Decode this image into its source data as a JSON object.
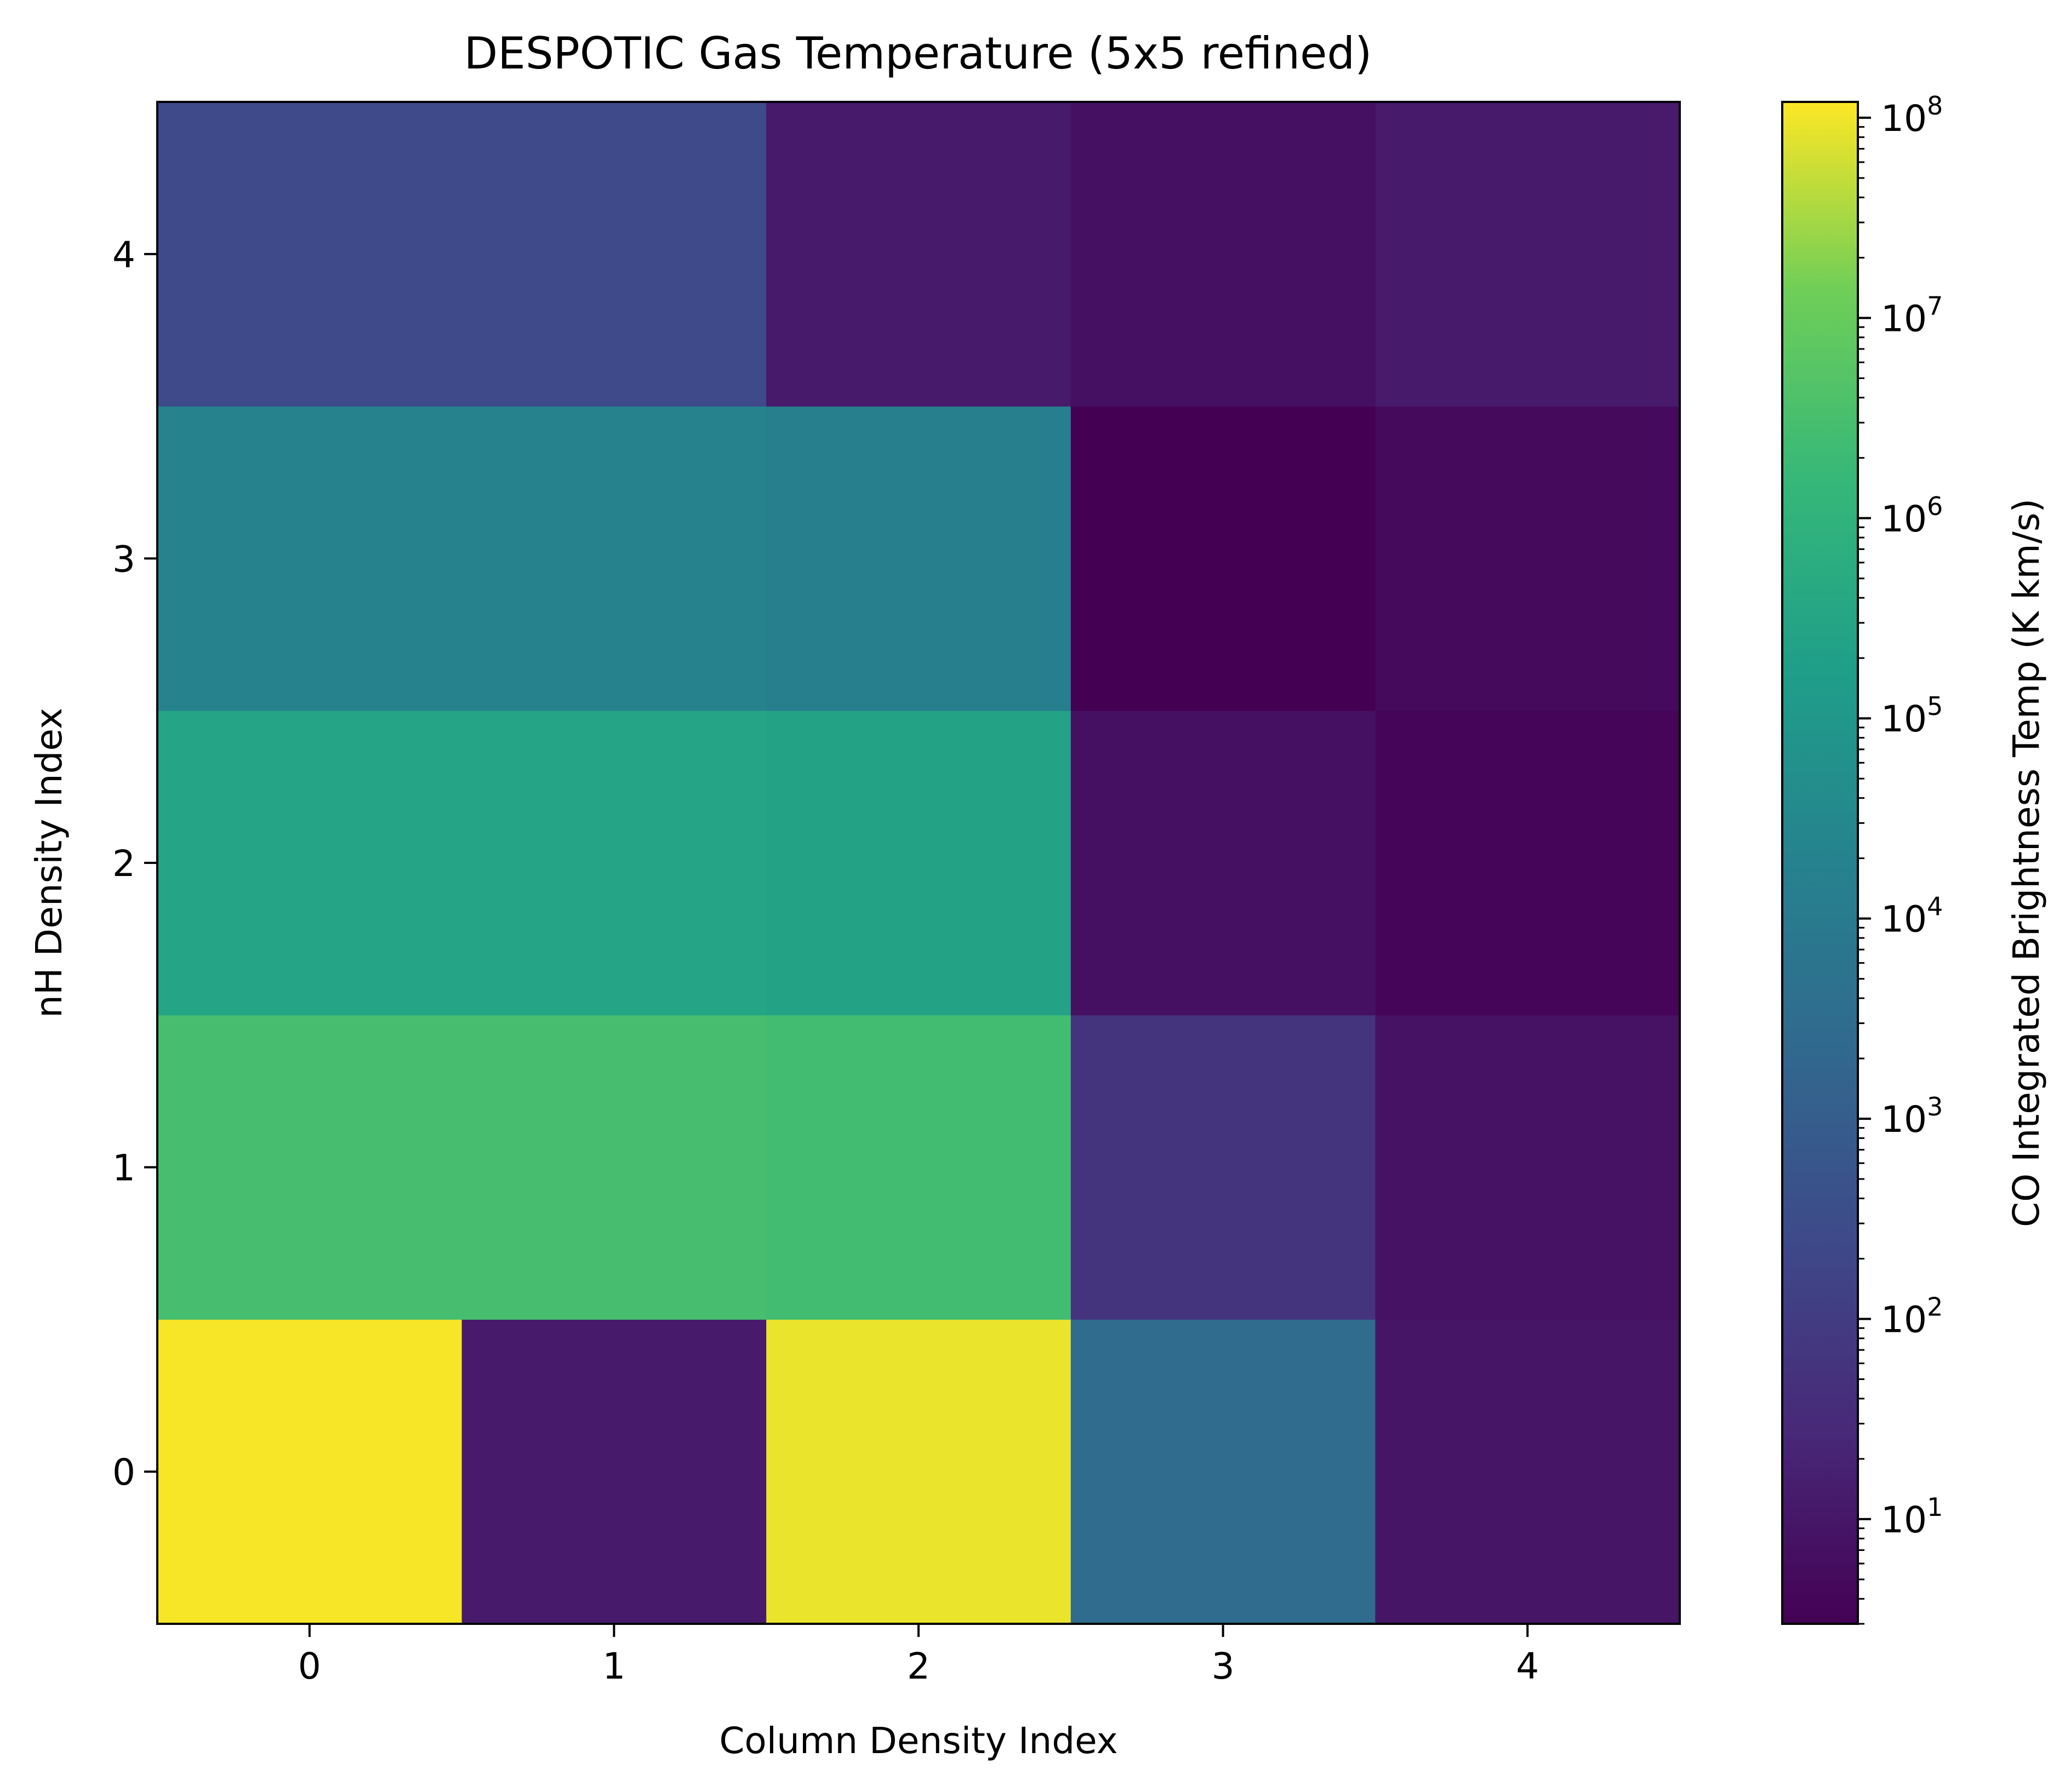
{
  "chart_data": {
    "type": "heatmap",
    "title": "DESPOTIC Gas Temperature (5x5 refined)",
    "xlabel": "Column Density Index",
    "ylabel": "nH Density Index",
    "x_ticks": [
      "0",
      "1",
      "2",
      "3",
      "4"
    ],
    "y_ticks": [
      "0",
      "1",
      "2",
      "3",
      "4"
    ],
    "colormap": "viridis",
    "colorbar": {
      "label": "CO Integrated Brightness Temp (K km/s)",
      "scale": "log",
      "vmin": 3,
      "vmax": 120000000,
      "ticks": [
        {
          "value": 10,
          "base": "10",
          "exp": "1"
        },
        {
          "value": 100,
          "base": "10",
          "exp": "2"
        },
        {
          "value": 1000,
          "base": "10",
          "exp": "3"
        },
        {
          "value": 10000,
          "base": "10",
          "exp": "4"
        },
        {
          "value": 100000,
          "base": "10",
          "exp": "5"
        },
        {
          "value": 1000000,
          "base": "10",
          "exp": "6"
        },
        {
          "value": 10000000,
          "base": "10",
          "exp": "7"
        },
        {
          "value": 100000000,
          "base": "10",
          "exp": "8"
        }
      ]
    },
    "rows_nH_index": [
      0,
      1,
      2,
      3,
      4
    ],
    "cols_column_density_index": [
      0,
      1,
      2,
      3,
      4
    ],
    "values": [
      [
        110000000,
        12,
        90000000,
        3000,
        9
      ],
      [
        3000000,
        3000000,
        2500000,
        60,
        8
      ],
      [
        300000,
        300000,
        250000,
        7,
        4
      ],
      [
        20000,
        20000,
        15000,
        3,
        5
      ],
      [
        250,
        250,
        12,
        7,
        12
      ]
    ]
  }
}
